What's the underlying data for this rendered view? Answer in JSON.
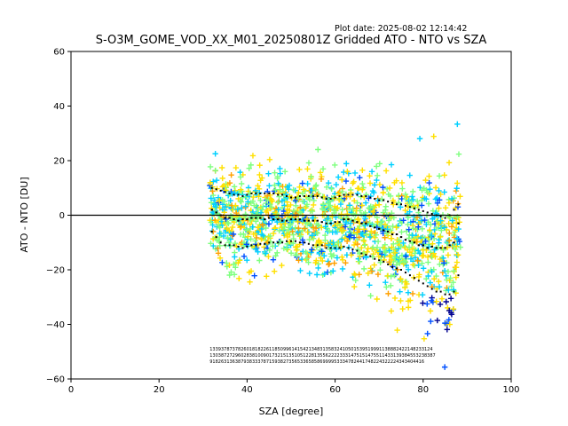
{
  "plot_date": "Plot date: 2025-08-02 12:14:42",
  "chart_data": {
    "type": "scatter",
    "title": "S-O3M_GOME_VOD_XX_M01_20250801Z Gridded ATO - NTO vs SZA",
    "xlabel": "SZA [degree]",
    "ylabel": "ATO - NTO [DU]",
    "xlim": [
      0,
      100
    ],
    "ylim": [
      -60,
      60
    ],
    "x_ticks": [
      0,
      20,
      40,
      60,
      80,
      100
    ],
    "y_ticks": [
      -60,
      -40,
      -20,
      0,
      20,
      40,
      60
    ],
    "x_tick_labels": [
      "0",
      "20",
      "40",
      "60",
      "80",
      "100"
    ],
    "y_tick_labels": [
      "−60",
      "−40",
      "−20",
      "0",
      "20",
      "40",
      "60"
    ],
    "grid": false,
    "legend": "none",
    "marker": "+",
    "zero_line": 0,
    "colormap": [
      "#00008f",
      "#0050ff",
      "#00d0ff",
      "#7fff7f",
      "#ffe000",
      "#ffa000"
    ],
    "sza_bins": [
      32,
      33,
      34,
      35,
      36,
      37,
      38,
      39,
      40,
      41,
      42,
      43,
      44,
      45,
      46,
      47,
      48,
      49,
      50,
      51,
      52,
      53,
      54,
      55,
      56,
      57,
      58,
      59,
      60,
      61,
      62,
      63,
      64,
      65,
      66,
      67,
      68,
      69,
      70,
      71,
      72,
      73,
      74,
      75,
      76,
      77,
      78,
      79,
      80,
      81,
      82,
      83,
      84,
      85,
      86,
      87,
      88
    ],
    "mean_series": {
      "name": "mean",
      "values": [
        2,
        1,
        0,
        -1,
        -1,
        -1.5,
        -2,
        -1.5,
        -1.5,
        -1,
        -1,
        -1,
        -1.5,
        -1,
        -1.5,
        -1.5,
        -2,
        -2,
        -1.5,
        -1.5,
        -1.5,
        -2,
        -2,
        -2,
        -2,
        -2.5,
        -3,
        -3,
        -2.5,
        -2.5,
        -1.5,
        -1.5,
        -2,
        -2.5,
        -3,
        -3,
        -4,
        -4.5,
        -5,
        -5.5,
        -6,
        -7,
        -7,
        -8,
        -9,
        -9.5,
        -10,
        -11,
        -11,
        -12,
        -11.5,
        -12,
        -12,
        -12,
        -11,
        -10,
        -3
      ]
    },
    "upper_std_series": {
      "name": "mean + std",
      "values": [
        10,
        9.5,
        9,
        8.5,
        8,
        7.5,
        7.5,
        7,
        7.5,
        8,
        8,
        8,
        8,
        8,
        8,
        7.5,
        7.5,
        7,
        6.5,
        6.5,
        7,
        7,
        7,
        7,
        7,
        6.5,
        6,
        6,
        6.5,
        7,
        7.5,
        7.5,
        7.5,
        7.5,
        7,
        7,
        6.5,
        6,
        5.5,
        5.5,
        5,
        4.5,
        4,
        4,
        3.5,
        3,
        2.5,
        2,
        1.5,
        1,
        0.5,
        0,
        -0.5,
        -1,
        0,
        2,
        4
      ]
    },
    "lower_std_series": {
      "name": "mean - std",
      "values": [
        -6,
        -8,
        -10,
        -11,
        -11,
        -11,
        -11.5,
        -12,
        -11.5,
        -11,
        -11,
        -10.5,
        -10.5,
        -10,
        -10,
        -10,
        -10,
        -9.5,
        -9.5,
        -9.5,
        -10,
        -10,
        -10.5,
        -11,
        -11,
        -11,
        -12,
        -12,
        -12,
        -12,
        -11.5,
        -12,
        -12.5,
        -13,
        -14,
        -14.5,
        -15,
        -16,
        -16.5,
        -17,
        -18,
        -19,
        -19.5,
        -20,
        -21,
        -22,
        -23,
        -24,
        -25,
        -26,
        -27,
        -28,
        -28,
        -29,
        -29,
        -28,
        -22
      ]
    },
    "counts": {
      "row1": "1339378737826018182261185099614154213483135832410501539519991138882422148233124",
      "row2": "13038727296028381009017321513510512281355622223331475151475511433139384553238387",
      "row3": "9182631363879383337871593827356533658586999953334782441748224322224343404416"
    }
  }
}
